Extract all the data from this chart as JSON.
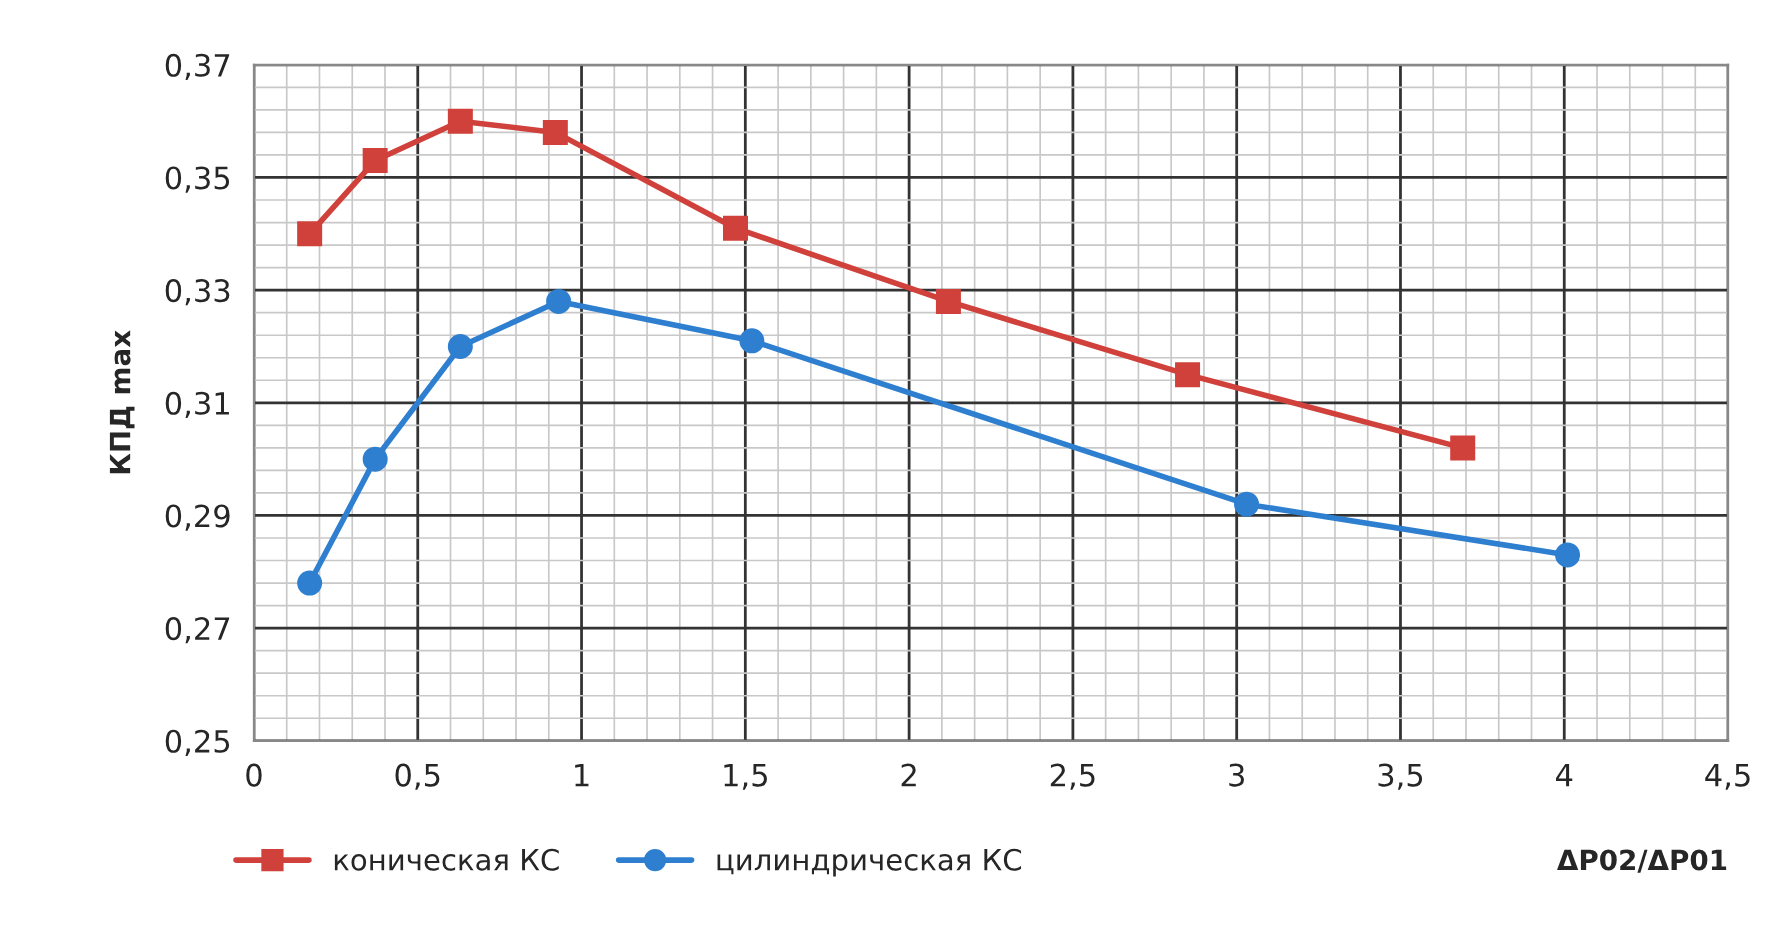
{
  "chart_data": {
    "type": "line",
    "xlabel": "ΔP02/ΔP01",
    "ylabel": "КПД max",
    "series": [
      {
        "name": "коническая КС",
        "color": "#d0413b",
        "marker": "square",
        "x": [
          0.17,
          0.37,
          0.63,
          0.92,
          1.47,
          2.12,
          2.85,
          3.69
        ],
        "values": [
          0.34,
          0.353,
          0.36,
          0.358,
          0.341,
          0.328,
          0.315,
          0.302
        ]
      },
      {
        "name": "цилиндрическая КС",
        "color": "#2f7fd0",
        "marker": "circle",
        "x": [
          0.17,
          0.37,
          0.63,
          0.93,
          1.52,
          3.03,
          4.01
        ],
        "values": [
          0.278,
          0.3,
          0.32,
          0.328,
          0.321,
          0.292,
          0.283
        ]
      }
    ],
    "xlim": [
      0,
      4.5
    ],
    "ylim": [
      0.25,
      0.37
    ],
    "xticks": [
      0,
      {
        "value": 0.5,
        "label": "0,5"
      },
      1,
      {
        "value": 1.5,
        "label": "1,5"
      },
      2,
      {
        "value": 2.5,
        "label": "2,5"
      },
      3,
      {
        "value": 3.5,
        "label": "3,5"
      },
      4,
      {
        "value": 4.5,
        "label": "4,5"
      }
    ],
    "yticks": [
      {
        "value": 0.25,
        "label": "0,25"
      },
      {
        "value": 0.27,
        "label": "0,27"
      },
      {
        "value": 0.29,
        "label": "0,29"
      },
      {
        "value": 0.31,
        "label": "0,31"
      },
      {
        "value": 0.33,
        "label": "0,33"
      },
      {
        "value": 0.35,
        "label": "0,35"
      },
      {
        "value": 0.37,
        "label": "0,37"
      }
    ],
    "grid": true,
    "legend": "bottom left",
    "line_style": "solid"
  }
}
